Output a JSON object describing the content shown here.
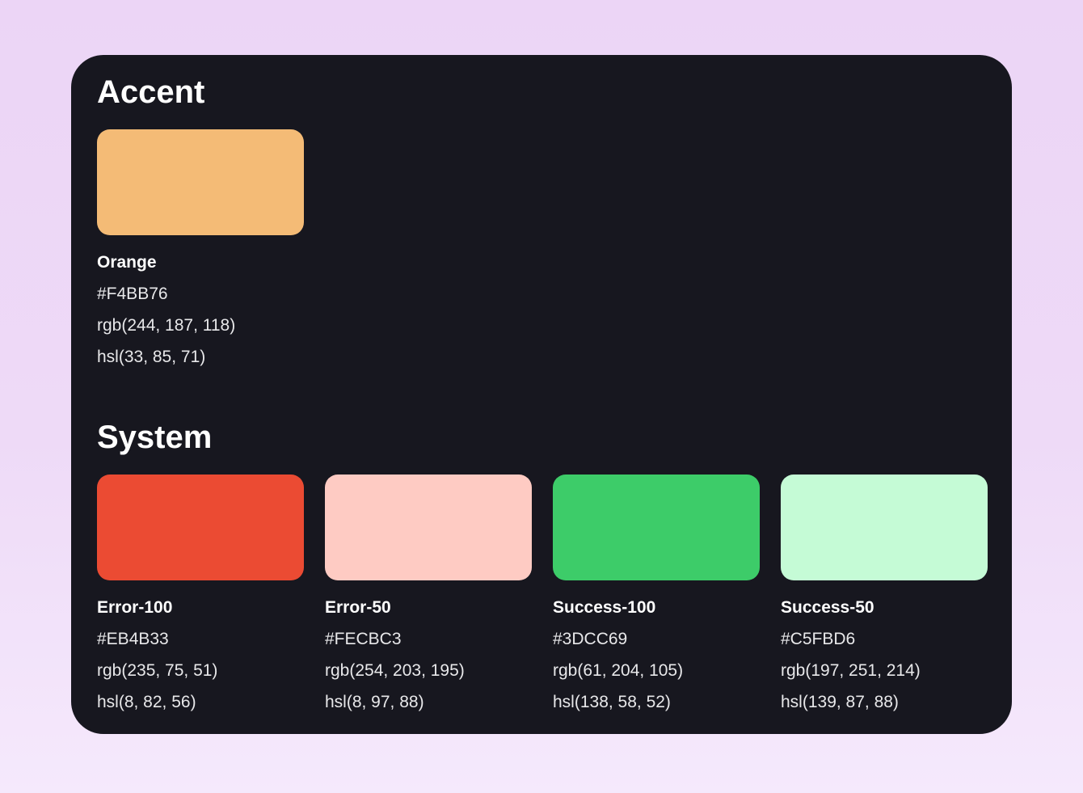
{
  "theme": {
    "page_bg_top": "#ECD5F6",
    "page_bg_bottom": "#F5E9FC",
    "card_bg": "#17171F",
    "text_primary": "#FFFFFF",
    "text_secondary": "#E8E8EA"
  },
  "sections": [
    {
      "title": "Accent",
      "swatches": [
        {
          "name": "Orange",
          "hex": "#F4BB76",
          "rgb": "rgb(244, 187, 118)",
          "hsl": "hsl(33, 85, 71)"
        }
      ]
    },
    {
      "title": "System",
      "swatches": [
        {
          "name": "Error-100",
          "hex": "#EB4B33",
          "rgb": "rgb(235, 75, 51)",
          "hsl": "hsl(8, 82, 56)"
        },
        {
          "name": "Error-50",
          "hex": "#FECBC3",
          "rgb": "rgb(254, 203, 195)",
          "hsl": "hsl(8, 97, 88)"
        },
        {
          "name": "Success-100",
          "hex": "#3DCC69",
          "rgb": "rgb(61, 204, 105)",
          "hsl": "hsl(138, 58, 52)"
        },
        {
          "name": "Success-50",
          "hex": "#C5FBD6",
          "rgb": "rgb(197, 251, 214)",
          "hsl": "hsl(139, 87, 88)"
        }
      ]
    }
  ]
}
